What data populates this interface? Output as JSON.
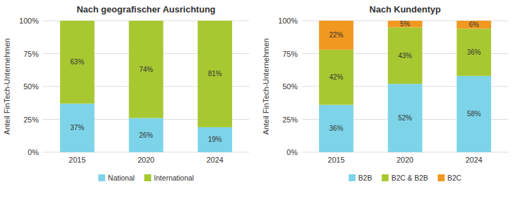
{
  "chart_data": [
    {
      "type": "bar",
      "stacked": true,
      "title": "Nach geografischer Ausrichtung",
      "y_label": "Anteil FinTech-Unternehmen",
      "categories": [
        "2015",
        "2020",
        "2024"
      ],
      "series": [
        {
          "name": "National",
          "color": "#7dd4e8",
          "values": [
            37,
            26,
            19
          ],
          "value_labels": [
            "37%",
            "26%",
            "19%"
          ]
        },
        {
          "name": "International",
          "color": "#a8c832",
          "values": [
            63,
            74,
            81
          ],
          "value_labels": [
            "63%",
            "74%",
            "81%"
          ]
        }
      ],
      "ylim": [
        0,
        100
      ],
      "yticks": [
        {
          "value": 0,
          "label": "0%"
        },
        {
          "value": 25,
          "label": "25%"
        },
        {
          "value": 50,
          "label": "50%"
        },
        {
          "value": 75,
          "label": "75%"
        },
        {
          "value": 100,
          "label": "100%"
        }
      ],
      "grid": true,
      "data_labels": true,
      "legend": "bottom"
    },
    {
      "type": "bar",
      "stacked": true,
      "title": "Nach Kundentyp",
      "y_label": "Anteil FinTech-Unternehmen",
      "categories": [
        "2015",
        "2020",
        "2024"
      ],
      "series": [
        {
          "name": "B2B",
          "color": "#7dd4e8",
          "values": [
            36,
            52,
            58
          ],
          "value_labels": [
            "36%",
            "52%",
            "58%"
          ]
        },
        {
          "name": "B2C & B2B",
          "color": "#a8c832",
          "values": [
            42,
            43,
            36
          ],
          "value_labels": [
            "42%",
            "43%",
            "36%"
          ]
        },
        {
          "name": "B2C",
          "color": "#f09820",
          "values": [
            22,
            5,
            6
          ],
          "value_labels": [
            "22%",
            "5%",
            "6%"
          ]
        }
      ],
      "ylim": [
        0,
        100
      ],
      "yticks": [
        {
          "value": 0,
          "label": "0%"
        },
        {
          "value": 25,
          "label": "25%"
        },
        {
          "value": 50,
          "label": "50%"
        },
        {
          "value": 75,
          "label": "75%"
        },
        {
          "value": 100,
          "label": "100%"
        }
      ],
      "grid": true,
      "data_labels": true,
      "legend": "bottom"
    }
  ]
}
